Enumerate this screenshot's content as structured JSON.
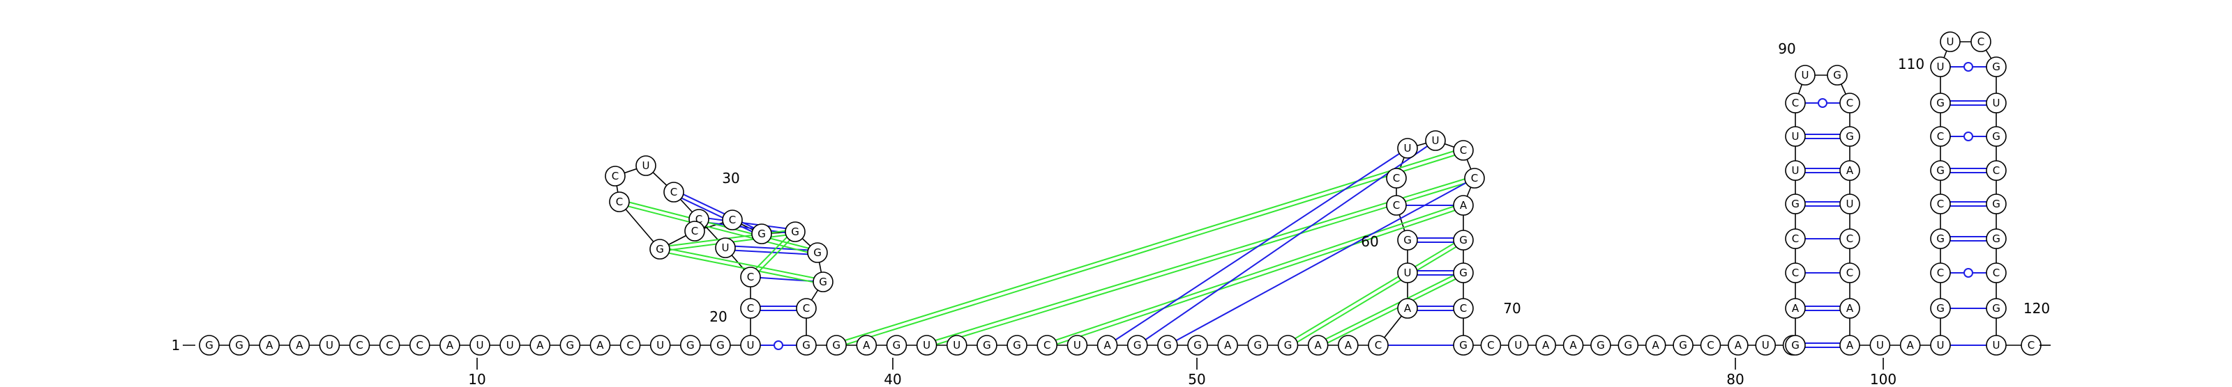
{
  "sequence": {
    "start_label": "1",
    "end_label": "122",
    "nucleotides": [
      "G",
      "G",
      "A",
      "A",
      "U",
      "C",
      "C",
      "C",
      "A",
      "U",
      "U",
      "A",
      "G",
      "A",
      "C",
      "U",
      "G",
      "G",
      "U",
      "C",
      "C",
      "U",
      "C",
      "C",
      "U",
      "C",
      "C",
      "G",
      "C",
      "C",
      "G",
      "G",
      "G",
      "G",
      "C",
      "G",
      "G",
      "A",
      "G",
      "U",
      "U",
      "G",
      "G",
      "C",
      "U",
      "A",
      "G",
      "G",
      "G",
      "A",
      "G",
      "G",
      "A",
      "A",
      "C",
      "A",
      "U",
      "G",
      "C",
      "C",
      "U",
      "U",
      "C",
      "C",
      "A",
      "G",
      "G",
      "C",
      "G",
      "C",
      "U",
      "A",
      "A",
      "G",
      "G",
      "A",
      "G",
      "C",
      "A",
      "U",
      "C",
      "G",
      "A",
      "C",
      "C",
      "G",
      "U",
      "U",
      "C",
      "U",
      "G",
      "C",
      "G",
      "A",
      "U",
      "C",
      "C",
      "A",
      "A",
      "U",
      "A",
      "U",
      "G",
      "C",
      "G",
      "C",
      "G",
      "C",
      "G",
      "U",
      "U",
      "C",
      "G",
      "U",
      "G",
      "C",
      "G",
      "G",
      "C",
      "G",
      "U",
      "C"
    ]
  },
  "position_labels": [
    "10",
    "20",
    "30",
    "40",
    "50",
    "60",
    "70",
    "80",
    "90",
    "100",
    "110",
    "120"
  ],
  "pair_legend": {
    "canonical": "double-line",
    "wobble": "line-with-circle",
    "pseudoknot": "green"
  },
  "colors": {
    "backbone": "#000000",
    "pair": "#1e1ee6",
    "pseudoknot": "#33e633"
  }
}
